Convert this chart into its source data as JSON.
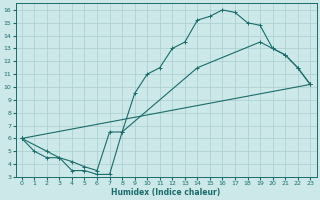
{
  "bg_color": "#cce8e8",
  "line_color": "#1a6b6b",
  "grid_color": "#aacece",
  "xlabel": "Humidex (Indice chaleur)",
  "xlim": [
    -0.5,
    23.5
  ],
  "ylim": [
    3,
    16.5
  ],
  "xticks": [
    0,
    1,
    2,
    3,
    4,
    5,
    6,
    7,
    8,
    9,
    10,
    11,
    12,
    13,
    14,
    15,
    16,
    17,
    18,
    19,
    20,
    21,
    22,
    23
  ],
  "yticks": [
    3,
    4,
    5,
    6,
    7,
    8,
    9,
    10,
    11,
    12,
    13,
    14,
    15,
    16
  ],
  "curve1_x": [
    0,
    1,
    2,
    3,
    4,
    5,
    6,
    7,
    8,
    9,
    10,
    11,
    12,
    13,
    14,
    15,
    16,
    17,
    18,
    19,
    20,
    21,
    22,
    23
  ],
  "curve1_y": [
    6,
    5,
    4.5,
    4.5,
    3.5,
    3.5,
    3.2,
    3.2,
    6.5,
    9.5,
    11,
    11.5,
    13,
    13.5,
    15.2,
    15.5,
    16,
    15.8,
    15,
    14.8,
    13,
    12.5,
    11.5,
    10.2
  ],
  "curve2_x": [
    0,
    2,
    3,
    4,
    5,
    6,
    7,
    8,
    14,
    19,
    20,
    21,
    22,
    23
  ],
  "curve2_y": [
    6,
    5,
    4.5,
    4.2,
    3.8,
    3.5,
    6.5,
    6.5,
    11.5,
    13.5,
    13,
    12.5,
    11.5,
    10.2
  ],
  "curve3_x": [
    0,
    23
  ],
  "curve3_y": [
    6,
    10.2
  ]
}
